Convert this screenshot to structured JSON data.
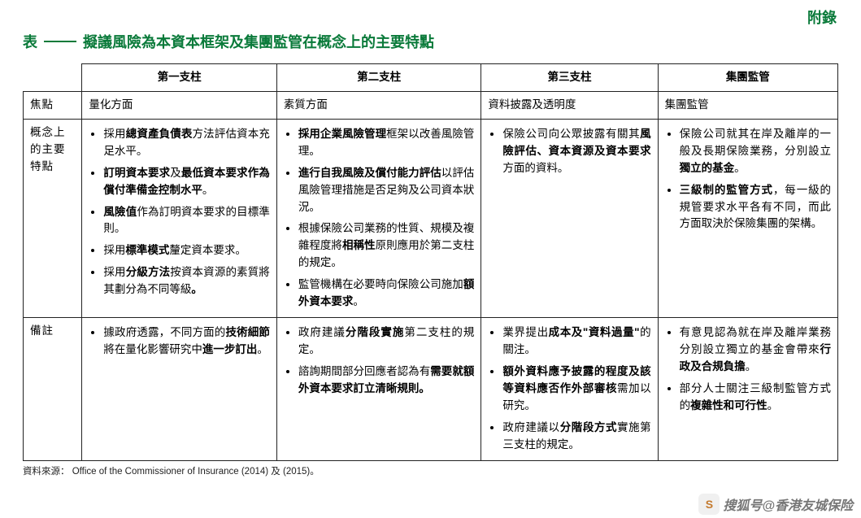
{
  "appendix": "附錄",
  "title_prefix": "表",
  "title_main": "擬議風險為本資本框架及集團監管在概念上的主要特點",
  "headers": [
    "第一支柱",
    "第二支柱",
    "第三支柱",
    "集團監管"
  ],
  "rows": {
    "focus": {
      "label": "焦點",
      "cells": [
        "量化方面",
        "素質方面",
        "資料披露及透明度",
        "集團監管"
      ]
    },
    "concept": {
      "label": "概念上的主要特點",
      "col1": [
        "採用<span class='b'>總資產負債表</span>方法評估資本充足水平。",
        "<span class='b'>訂明資本要求</span>及<span class='b'>最低資本要求作為償付準備金控制水平</span>。",
        "<span class='b'>風險值</span>作為訂明資本要求的目標準則。",
        "採用<span class='b'>標準模式</span>釐定資本要求。",
        "採用<span class='b'>分級方法</span>按資本資源的素質將其劃分為不同等級<span class='b'>。</span>"
      ],
      "col2": [
        "<span class='b'>採用企業風險管理</span>框架以改善風險管理。",
        "<span class='b'>進行自我風險及償付能力評估</span>以評估風險管理措施是否足夠及公司資本狀況。",
        "根據保險公司業務的性質、規模及複雜程度將<span class='b'>相稱性</span>原則應用於第二支柱的規定。",
        "監管機構在必要時向保險公司施加<span class='b'>額外資本要求</span>。"
      ],
      "col3": [
        "保險公司向公眾披露有關其<span class='b'>風險評估、資本資源及資本要求</span>方面的資料。"
      ],
      "col4": [
        "保險公司就其在岸及離岸的一般及長期保險業務，分別設立<span class='b'>獨立的基金</span>。",
        "<span class='b'>三級制的監管方式</span>，每一級的規管要求水平各有不同，而此方面取決於保險集團的架構。"
      ]
    },
    "remarks": {
      "label": "備註",
      "col1": [
        "據政府透露，不同方面的<span class='b'>技術細節</span>將在量化影響研究中<span class='b'>進一步訂出</span>。"
      ],
      "col2": [
        "政府建議<span class='b'>分階段實施</span>第二支柱的規定。",
        "諮詢期間部分回應者認為有<span class='b'>需要就額外資本要求訂立清晰規則。</span>"
      ],
      "col3": [
        "業界提出<span class='b'>成本及\"資料過量\"</span>的關注。",
        "<span class='b'>額外資料應予披露的程度及該等資料應否作外部審核</span>需加以研究。",
        "政府建議以<span class='b'>分階段方式</span>實施第三支柱的規定。"
      ],
      "col4": [
        "有意見認為就在岸及離岸業務分別設立獨立的基金會帶來<span class='b'>行政及合規負擔</span>。",
        "部分人士關注三級制監管方式的<span class='b'>複雜性和可行性</span>。"
      ]
    }
  },
  "source": "資料來源： Office of the Commissioner of Insurance (2014) 及 (2015)。",
  "watermark": "搜狐号@香港友城保险"
}
